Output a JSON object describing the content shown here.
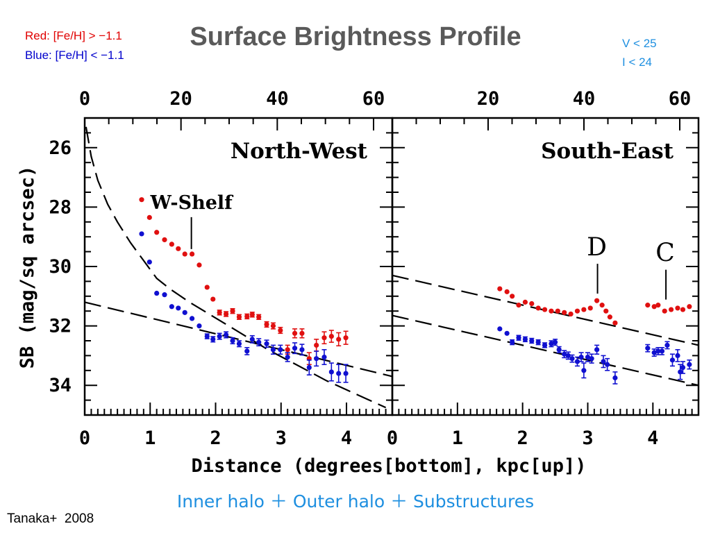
{
  "slide": {
    "title": "Surface Brightness Profile",
    "legend_red": "Red:  [Fe/H] > −1.1",
    "legend_blue": "Blue: [Fe/H] < −1.1",
    "mag_cut_v": "V < 25",
    "mag_cut_i": "I  < 24",
    "subtitle": "Inner halo ＋ Outer halo ＋ Substructures",
    "citation": "Tanaka+  2008",
    "colors": {
      "red_population": "#e01010",
      "blue_population": "#1010d0",
      "title": "#5a5a5a",
      "accent": "#1e8fe0"
    }
  },
  "chart_data": {
    "type": "scatter",
    "ylabel": "SB (mag/sq arcsec)",
    "xlabel": "Distance (degrees[bottom], kpc[up])",
    "y_inverted": true,
    "grid": false,
    "panels": [
      {
        "name": "North-West",
        "xlim_deg": [
          0,
          4.7
        ],
        "ylim": [
          25,
          35
        ],
        "x_ticks_deg": [
          "0",
          "1",
          "2",
          "3",
          "4"
        ],
        "x_ticks_kpc": [
          "0",
          "20",
          "40",
          "60"
        ],
        "y_ticks": [
          "26",
          "28",
          "30",
          "32",
          "34"
        ],
        "annotations": [
          {
            "text": "W-Shelf",
            "x_deg": 1.63,
            "y": 29.6
          }
        ],
        "series": [
          {
            "color": "red",
            "x": [
              0.87,
              0.99,
              1.1,
              1.22,
              1.33,
              1.43,
              1.53,
              1.64,
              1.75,
              1.87,
              1.96,
              2.06,
              2.16,
              2.26,
              2.36,
              2.48,
              2.56,
              2.66,
              2.78,
              2.88,
              2.99,
              3.1,
              3.21,
              3.32,
              3.43,
              3.54,
              3.66,
              3.77,
              3.88,
              3.99
            ],
            "y": [
              27.75,
              28.35,
              28.85,
              29.1,
              29.25,
              29.4,
              29.58,
              29.58,
              29.95,
              30.7,
              31.1,
              31.55,
              31.6,
              31.5,
              31.7,
              31.68,
              31.62,
              31.7,
              31.95,
              32.0,
              32.15,
              32.8,
              32.25,
              32.25,
              33.1,
              32.65,
              32.4,
              32.35,
              32.45,
              32.4
            ],
            "yerr": [
              0.05,
              0.05,
              0.05,
              0.05,
              0.05,
              0.05,
              0.05,
              0.05,
              0.05,
              0.06,
              0.07,
              0.08,
              0.08,
              0.08,
              0.08,
              0.08,
              0.08,
              0.08,
              0.09,
              0.1,
              0.1,
              0.15,
              0.15,
              0.15,
              0.2,
              0.2,
              0.2,
              0.2,
              0.22,
              0.22
            ]
          },
          {
            "color": "blue",
            "x": [
              0.87,
              0.99,
              1.1,
              1.22,
              1.33,
              1.43,
              1.53,
              1.64,
              1.75,
              1.87,
              1.96,
              2.06,
              2.16,
              2.26,
              2.36,
              2.48,
              2.56,
              2.66,
              2.78,
              2.88,
              2.99,
              3.1,
              3.21,
              3.32,
              3.43,
              3.54,
              3.66,
              3.77,
              3.88,
              3.99
            ],
            "y": [
              28.9,
              29.85,
              30.9,
              30.95,
              31.35,
              31.4,
              31.55,
              31.75,
              32.0,
              32.35,
              32.45,
              32.35,
              32.3,
              32.5,
              32.6,
              32.85,
              32.45,
              32.55,
              32.6,
              32.8,
              32.8,
              33.05,
              32.75,
              32.8,
              33.4,
              33.1,
              33.05,
              33.55,
              33.6,
              33.6
            ],
            "yerr": [
              0.05,
              0.05,
              0.05,
              0.05,
              0.05,
              0.05,
              0.05,
              0.06,
              0.06,
              0.08,
              0.09,
              0.1,
              0.1,
              0.1,
              0.1,
              0.12,
              0.12,
              0.12,
              0.12,
              0.15,
              0.15,
              0.15,
              0.18,
              0.18,
              0.25,
              0.25,
              0.25,
              0.3,
              0.3,
              0.3
            ]
          }
        ],
        "model_curves": [
          {
            "kind": "inner halo (steep profile)",
            "x": [
              0.02,
              0.1,
              0.2,
              0.35,
              0.5,
              0.7,
              0.9,
              1.1,
              1.3,
              1.6,
              1.9,
              2.2,
              2.5,
              2.8,
              3.1,
              3.4,
              3.7,
              4.0,
              4.3,
              4.6
            ],
            "y": [
              25.3,
              26.3,
              27.1,
              27.9,
              28.5,
              29.2,
              29.8,
              30.4,
              30.75,
              31.2,
              31.6,
              32.0,
              32.4,
              32.8,
              33.15,
              33.5,
              33.85,
              34.15,
              34.45,
              34.75
            ]
          },
          {
            "kind": "outer halo (linear)",
            "x": [
              0.0,
              4.7
            ],
            "y": [
              31.2,
              33.7
            ]
          }
        ]
      },
      {
        "name": "South-East",
        "xlim_deg": [
          0,
          4.7
        ],
        "ylim": [
          25,
          35
        ],
        "x_ticks_deg": [
          "0",
          "1",
          "2",
          "3",
          "4"
        ],
        "x_ticks_kpc": [
          "20",
          "40",
          "60"
        ],
        "annotations": [
          {
            "text": "D",
            "x_deg": 3.15,
            "y": 31.1
          },
          {
            "text": "C",
            "x_deg": 4.2,
            "y": 31.3
          }
        ],
        "series": [
          {
            "color": "red",
            "x": [
              1.65,
              1.76,
              1.84,
              1.94,
              2.04,
              2.14,
              2.24,
              2.34,
              2.44,
              2.54,
              2.64,
              2.74,
              2.84,
              2.94,
              3.04,
              3.14,
              3.22,
              3.28,
              3.34,
              3.42,
              3.92,
              4.02,
              4.08,
              4.18,
              4.28,
              4.38,
              4.46,
              4.56
            ],
            "y": [
              30.75,
              30.85,
              31.0,
              31.3,
              31.2,
              31.25,
              31.4,
              31.45,
              31.5,
              31.5,
              31.55,
              31.6,
              31.5,
              31.45,
              31.4,
              31.15,
              31.3,
              31.5,
              31.7,
              31.9,
              31.3,
              31.35,
              31.3,
              31.5,
              31.45,
              31.4,
              31.45,
              31.35
            ],
            "yerr": [
              0.05,
              0.05,
              0.05,
              0.05,
              0.05,
              0.05,
              0.05,
              0.05,
              0.05,
              0.05,
              0.05,
              0.05,
              0.05,
              0.05,
              0.05,
              0.05,
              0.05,
              0.06,
              0.06,
              0.06,
              0.05,
              0.05,
              0.05,
              0.05,
              0.05,
              0.05,
              0.05,
              0.05
            ]
          },
          {
            "color": "blue",
            "x": [
              1.65,
              1.76,
              1.84,
              1.94,
              2.04,
              2.14,
              2.24,
              2.34,
              2.44,
              2.5,
              2.56,
              2.64,
              2.7,
              2.76,
              2.84,
              2.9,
              2.94,
              3.0,
              3.06,
              3.14,
              3.24,
              3.3,
              3.42,
              3.92,
              4.02,
              4.08,
              4.14,
              4.22,
              4.3,
              4.38,
              4.42,
              4.46,
              4.56
            ],
            "y": [
              32.1,
              32.25,
              32.55,
              32.4,
              32.45,
              32.5,
              32.55,
              32.65,
              32.6,
              32.55,
              32.8,
              32.95,
              33.0,
              33.1,
              33.2,
              33.05,
              33.5,
              33.05,
              33.1,
              32.8,
              33.2,
              33.3,
              33.75,
              32.75,
              32.9,
              32.85,
              32.85,
              32.65,
              33.15,
              33.0,
              33.55,
              33.4,
              33.3
            ],
            "yerr": [
              0.06,
              0.06,
              0.08,
              0.08,
              0.08,
              0.08,
              0.08,
              0.08,
              0.1,
              0.1,
              0.1,
              0.12,
              0.12,
              0.12,
              0.15,
              0.15,
              0.25,
              0.15,
              0.15,
              0.15,
              0.2,
              0.2,
              0.2,
              0.12,
              0.12,
              0.12,
              0.12,
              0.12,
              0.2,
              0.2,
              0.25,
              0.2,
              0.15
            ]
          }
        ],
        "model_curves": [
          {
            "kind": "upper linear fit",
            "x": [
              0.0,
              4.7
            ],
            "y": [
              30.3,
              32.65
            ]
          },
          {
            "kind": "lower linear fit",
            "x": [
              0.0,
              4.7
            ],
            "y": [
              31.65,
              34.0
            ]
          }
        ]
      }
    ]
  }
}
